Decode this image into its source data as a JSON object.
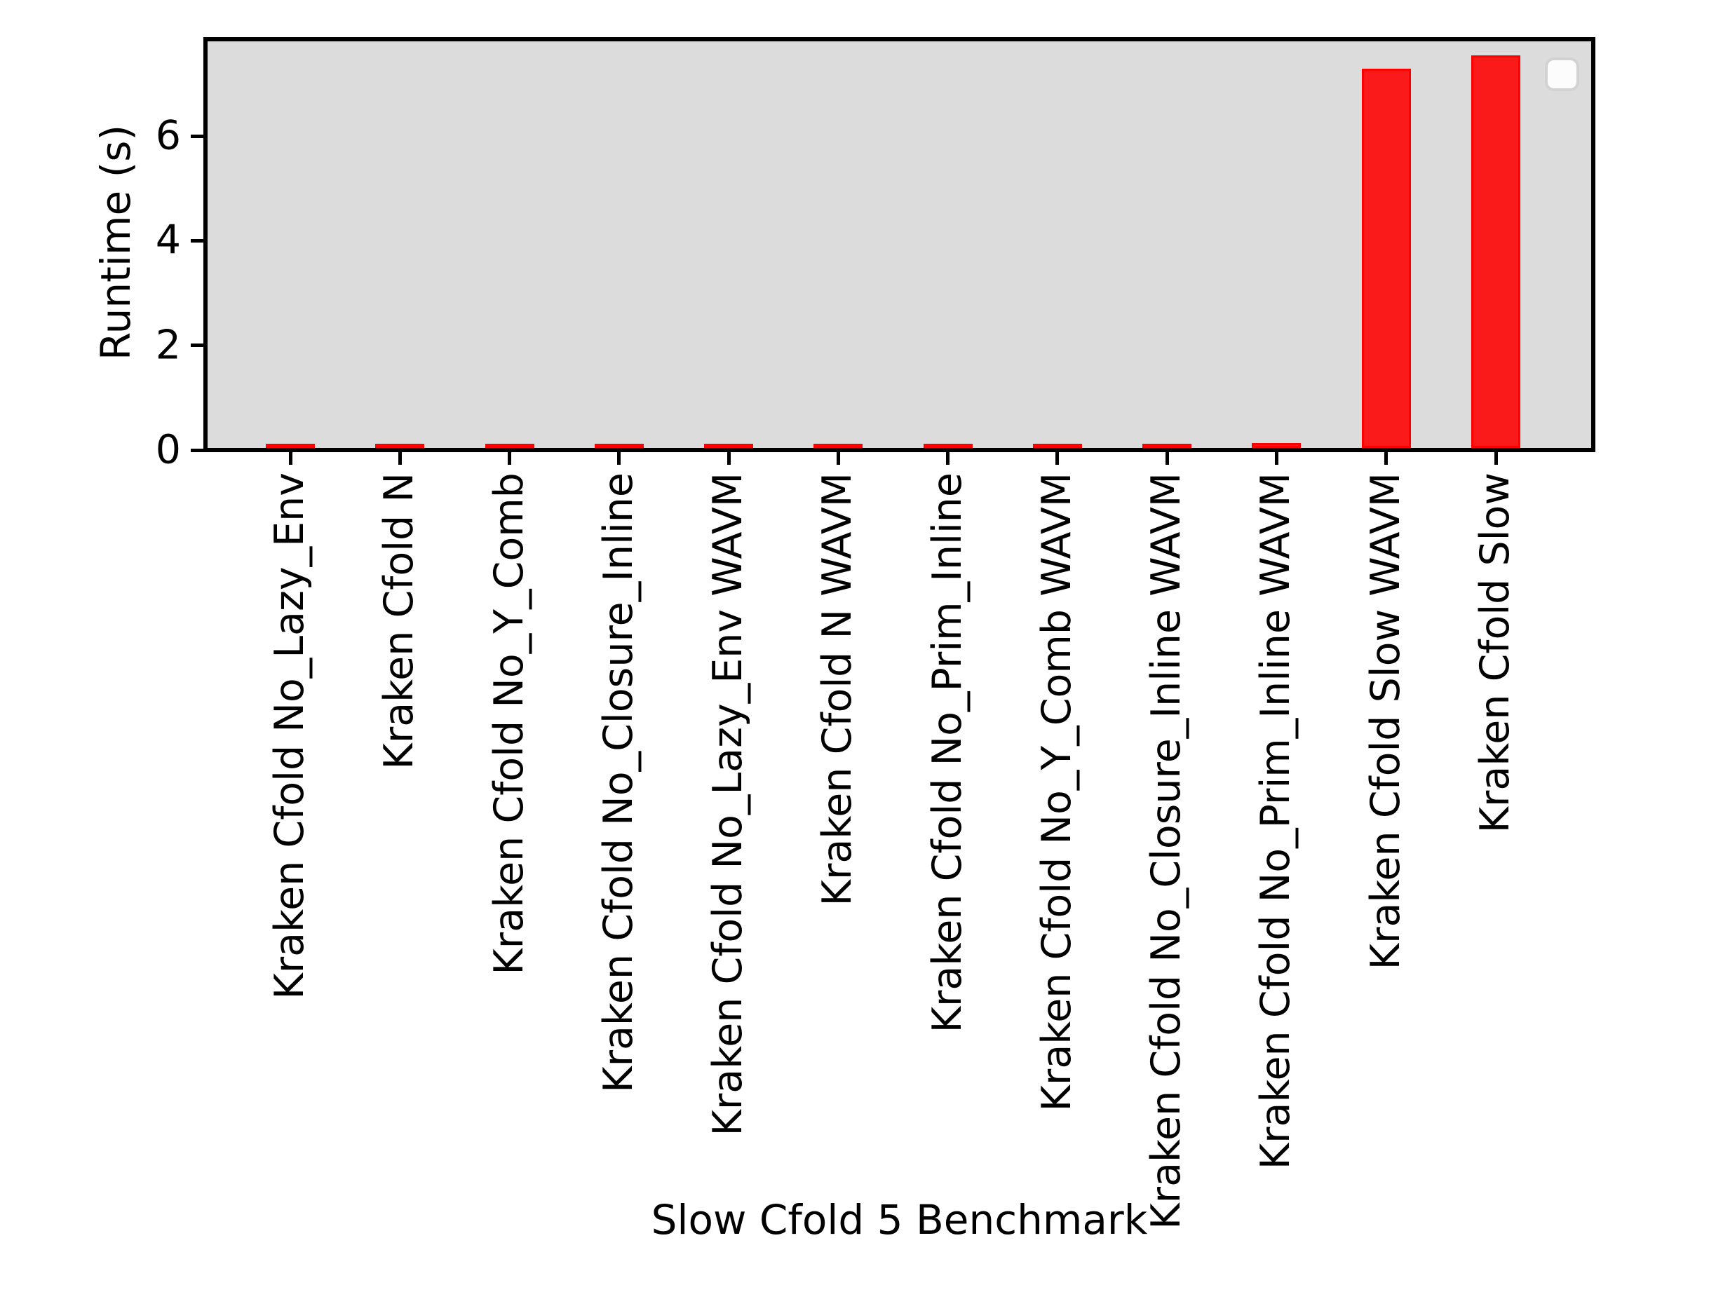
{
  "chart_data": {
    "type": "bar",
    "title": "",
    "xlabel": "Slow Cfold 5 Benchmark",
    "ylabel": "Runtime (s)",
    "categories": [
      "Kraken Cfold No_Lazy_Env",
      "Kraken Cfold N",
      "Kraken Cfold No_Y_Comb",
      "Kraken Cfold No_Closure_Inline",
      "Kraken Cfold No_Lazy_Env WAVM",
      "Kraken Cfold N WAVM",
      "Kraken Cfold No_Prim_Inline",
      "Kraken Cfold No_Y_Comb WAVM",
      "Kraken Cfold No_Closure_Inline WAVM",
      "Kraken Cfold No_Prim_Inline WAVM",
      "Kraken Cfold Slow WAVM",
      "Kraken Cfold Slow"
    ],
    "values": [
      0.04,
      0.04,
      0.035,
      0.05,
      0.055,
      0.055,
      0.055,
      0.06,
      0.065,
      0.09,
      7.25,
      7.5
    ],
    "yticks": [
      0,
      2,
      4,
      6
    ],
    "ylim": [
      0,
      7.85
    ],
    "grid": false,
    "legend": {
      "visible": true,
      "position": "upper right",
      "entries": []
    },
    "colors": {
      "bar_fill": "#fa1a1a",
      "bar_edge": "#ff0000",
      "plot_background": "#dcdcdc",
      "figure_background": "#ffffff",
      "axis": "#000000",
      "text": "#000000"
    }
  }
}
